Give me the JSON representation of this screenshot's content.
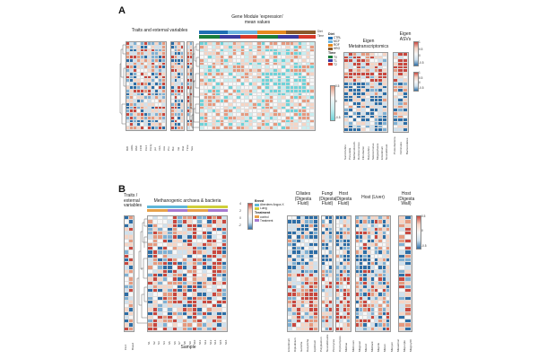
{
  "panels": {
    "a": {
      "letter": "A",
      "traits_title": "Traits and external variables",
      "gene_module_title": "Gene Module 'expression'\nmean values",
      "eigen_meta_title": "Eigen\nMetatranscriptomics",
      "eigen_asv_title": "Eigen\nASVs",
      "legend": {
        "diet_head": "Diet",
        "diet_items": [
          {
            "label": "CTRL",
            "color": "#1f6fb4"
          },
          {
            "label": "MCF",
            "color": "#6cb5e0"
          },
          {
            "label": "ROF",
            "color": "#e68a1e"
          },
          {
            "label": "HRO",
            "color": "#8a5a2b"
          }
        ],
        "time_head": "Time",
        "time_items": [
          {
            "label": "T0",
            "color": "#1a7d3a"
          },
          {
            "label": "T1",
            "color": "#3a3a9e"
          },
          {
            "label": "T2",
            "color": "#d63a2a"
          }
        ]
      },
      "colorbars": [
        {
          "ticks": [
            "0.5",
            "0",
            "-0.5"
          ]
        },
        {
          "ticks": [
            "1",
            "0.5",
            "0",
            "-0.5"
          ]
        },
        {
          "ticks": [
            "1",
            "0.5",
            "0",
            "-0.5"
          ]
        }
      ]
    },
    "b": {
      "letter": "B",
      "traits_title": "Traits /\nexternal\nvariables",
      "methanogen_title": "Methanogenic archaea & bacteria",
      "sample_label": "Sample",
      "ciliates_title": "Ciliates\n(Digesta\nFluid)",
      "fungi_title": "Fungi\n(Digesta\nFluid)",
      "host_fluid_title": "Host\n(Digesta\nFluid)",
      "host_liver_title": "Host (Liver)",
      "host_wall_title": "Host\n(Digesta\nWall)",
      "legend": {
        "head1": "Breed",
        "items1": [
          {
            "label": "Aberdeen Angus X",
            "color": "#5fb7d8"
          },
          {
            "label": "Luing",
            "color": "#cfcf3a"
          }
        ],
        "head2": "Treatment",
        "items2": [
          {
            "label": "control",
            "color": "#e8a24a"
          },
          {
            "label": "Treatment",
            "color": "#a77ad0"
          }
        ]
      },
      "colorbars": [
        {
          "ticks": [
            "4",
            "2",
            "0",
            "-2"
          ]
        },
        {
          "ticks": [
            "0.5",
            "0",
            "-0.5"
          ]
        }
      ]
    }
  },
  "colors": {
    "red_strong": "#c8483f",
    "red_mid": "#e69a7f",
    "red_light": "#f6d4c4",
    "white": "#f7f7f7",
    "blue_light": "#cfe1ee",
    "blue_mid": "#7fb0d3",
    "blue_strong": "#2e6ea6",
    "teal_light": "#c8eef0",
    "teal_mid": "#6fd3d8"
  }
}
